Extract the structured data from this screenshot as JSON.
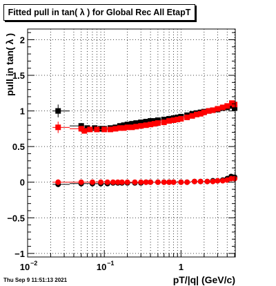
{
  "timestamp": "Thu Sep  9 11:51:13 2021",
  "chart_data": {
    "type": "scatter",
    "title": "Fitted pull in tan( λ ) for Global Rec All EtapT",
    "xlabel": "pT/|q| (GeV/c)",
    "ylabel": "pull in tan( λ )",
    "xscale": "log",
    "xlim": [
      0.01,
      5.1
    ],
    "ylim": [
      -1.05,
      2.15
    ],
    "grid": true,
    "x_ticks": [
      {
        "value": 0.01,
        "label": "10",
        "exp": "−2"
      },
      {
        "value": 0.1,
        "label": "10",
        "exp": "−1"
      },
      {
        "value": 1,
        "label": "1",
        "exp": ""
      }
    ],
    "y_ticks": [
      {
        "value": -1,
        "label": "−1"
      },
      {
        "value": -0.5,
        "label": "−0.5"
      },
      {
        "value": 0,
        "label": "0"
      },
      {
        "value": 0.5,
        "label": "0.5"
      },
      {
        "value": 1,
        "label": "1"
      },
      {
        "value": 1.5,
        "label": "1.5"
      },
      {
        "value": 2,
        "label": "2"
      }
    ],
    "series": [
      {
        "color": "#000000",
        "marker": "square",
        "points": [
          [
            0.025,
            1.0
          ],
          [
            0.05,
            0.79
          ],
          [
            0.06,
            0.76
          ],
          [
            0.075,
            0.76
          ],
          [
            0.09,
            0.75
          ],
          [
            0.1,
            0.75
          ],
          [
            0.12,
            0.76
          ],
          [
            0.14,
            0.77
          ],
          [
            0.16,
            0.79
          ],
          [
            0.18,
            0.8
          ],
          [
            0.2,
            0.81
          ],
          [
            0.23,
            0.82
          ],
          [
            0.26,
            0.83
          ],
          [
            0.3,
            0.84
          ],
          [
            0.35,
            0.85
          ],
          [
            0.4,
            0.86
          ],
          [
            0.45,
            0.86
          ],
          [
            0.5,
            0.87
          ],
          [
            0.6,
            0.88
          ],
          [
            0.7,
            0.89
          ],
          [
            0.8,
            0.9
          ],
          [
            0.9,
            0.91
          ],
          [
            1.0,
            0.92
          ],
          [
            1.2,
            0.94
          ],
          [
            1.4,
            0.96
          ],
          [
            1.6,
            0.97
          ],
          [
            1.8,
            0.98
          ],
          [
            2.0,
            0.99
          ],
          [
            2.3,
            1.0
          ],
          [
            2.6,
            1.01
          ],
          [
            3.0,
            1.02
          ],
          [
            3.5,
            1.04
          ],
          [
            4.0,
            1.05
          ],
          [
            4.6,
            1.07
          ],
          [
            5.0,
            1.04
          ]
        ],
        "errors": [
          0.09,
          0.03,
          0.02,
          0.02,
          0.02,
          0.02,
          0.02,
          0.02,
          0.02,
          0.02,
          0.02,
          0.02,
          0.02,
          0.02,
          0.02,
          0.02,
          0.02,
          0.02,
          0.02,
          0.02,
          0.02,
          0.02,
          0.02,
          0.02,
          0.02,
          0.02,
          0.02,
          0.02,
          0.02,
          0.02,
          0.02,
          0.02,
          0.02,
          0.02,
          0.02
        ]
      },
      {
        "color": "#ff0000",
        "marker": "square",
        "points": [
          [
            0.025,
            0.77
          ],
          [
            0.05,
            0.75
          ],
          [
            0.055,
            0.72
          ],
          [
            0.065,
            0.74
          ],
          [
            0.08,
            0.74
          ],
          [
            0.1,
            0.74
          ],
          [
            0.12,
            0.74
          ],
          [
            0.14,
            0.75
          ],
          [
            0.16,
            0.76
          ],
          [
            0.18,
            0.76
          ],
          [
            0.2,
            0.77
          ],
          [
            0.23,
            0.77
          ],
          [
            0.26,
            0.78
          ],
          [
            0.3,
            0.79
          ],
          [
            0.35,
            0.8
          ],
          [
            0.4,
            0.81
          ],
          [
            0.45,
            0.82
          ],
          [
            0.5,
            0.83
          ],
          [
            0.6,
            0.84
          ],
          [
            0.7,
            0.86
          ],
          [
            0.8,
            0.87
          ],
          [
            0.9,
            0.88
          ],
          [
            1.0,
            0.89
          ],
          [
            1.2,
            0.91
          ],
          [
            1.4,
            0.93
          ],
          [
            1.6,
            0.95
          ],
          [
            1.8,
            0.96
          ],
          [
            2.0,
            0.98
          ],
          [
            2.3,
            1.0
          ],
          [
            2.6,
            1.01
          ],
          [
            3.0,
            1.03
          ],
          [
            3.5,
            1.05
          ],
          [
            4.0,
            1.07
          ],
          [
            4.6,
            1.11
          ],
          [
            5.0,
            1.09
          ]
        ],
        "errors": [
          0.08,
          0.03,
          0.02,
          0.02,
          0.02,
          0.02,
          0.02,
          0.02,
          0.02,
          0.02,
          0.02,
          0.02,
          0.02,
          0.02,
          0.02,
          0.02,
          0.02,
          0.02,
          0.02,
          0.02,
          0.02,
          0.02,
          0.02,
          0.02,
          0.02,
          0.02,
          0.02,
          0.02,
          0.02,
          0.02,
          0.02,
          0.02,
          0.02,
          0.02,
          0.02
        ]
      },
      {
        "color": "#000000",
        "marker": "circle",
        "points": [
          [
            0.025,
            -0.03
          ],
          [
            0.05,
            -0.02
          ],
          [
            0.07,
            -0.02
          ],
          [
            0.09,
            -0.02
          ],
          [
            0.11,
            -0.02
          ],
          [
            0.13,
            -0.01
          ],
          [
            0.15,
            -0.01
          ],
          [
            0.17,
            -0.01
          ],
          [
            0.2,
            -0.01
          ],
          [
            0.25,
            -0.01
          ],
          [
            0.3,
            -0.01
          ],
          [
            0.35,
            0.0
          ],
          [
            0.4,
            0.0
          ],
          [
            0.5,
            0.0
          ],
          [
            0.6,
            0.0
          ],
          [
            0.7,
            0.0
          ],
          [
            0.8,
            0.0
          ],
          [
            1.0,
            0.0
          ],
          [
            1.2,
            0.0
          ],
          [
            1.5,
            0.01
          ],
          [
            1.8,
            0.01
          ],
          [
            2.2,
            0.01
          ],
          [
            2.6,
            0.02
          ],
          [
            3.0,
            0.02
          ],
          [
            3.5,
            0.03
          ],
          [
            4.0,
            0.05
          ],
          [
            4.5,
            0.08
          ],
          [
            5.0,
            0.07
          ]
        ],
        "errors": [
          0.04,
          0.02,
          0.02,
          0.02,
          0.02,
          0.02,
          0.02,
          0.02,
          0.02,
          0.02,
          0.02,
          0.02,
          0.02,
          0.02,
          0.02,
          0.02,
          0.02,
          0.02,
          0.02,
          0.02,
          0.02,
          0.02,
          0.02,
          0.02,
          0.02,
          0.02,
          0.03,
          0.03
        ]
      },
      {
        "color": "#ff0000",
        "marker": "circle",
        "points": [
          [
            0.025,
            0.0
          ],
          [
            0.05,
            0.0
          ],
          [
            0.07,
            0.0
          ],
          [
            0.09,
            0.0
          ],
          [
            0.11,
            0.0
          ],
          [
            0.13,
            0.0
          ],
          [
            0.15,
            0.0
          ],
          [
            0.17,
            0.0
          ],
          [
            0.2,
            0.0
          ],
          [
            0.25,
            0.0
          ],
          [
            0.3,
            0.0
          ],
          [
            0.35,
            0.0
          ],
          [
            0.4,
            0.0
          ],
          [
            0.5,
            0.0
          ],
          [
            0.6,
            0.0
          ],
          [
            0.7,
            0.0
          ],
          [
            0.8,
            0.0
          ],
          [
            1.0,
            0.0
          ],
          [
            1.2,
            0.0
          ],
          [
            1.5,
            0.01
          ],
          [
            1.8,
            0.01
          ],
          [
            2.2,
            0.01
          ],
          [
            2.6,
            0.01
          ],
          [
            3.0,
            0.02
          ],
          [
            3.5,
            0.02
          ],
          [
            4.0,
            0.03
          ],
          [
            4.5,
            0.05
          ],
          [
            5.0,
            0.05
          ]
        ],
        "errors": [
          0.04,
          0.02,
          0.02,
          0.02,
          0.02,
          0.02,
          0.02,
          0.02,
          0.02,
          0.02,
          0.02,
          0.02,
          0.02,
          0.02,
          0.02,
          0.02,
          0.02,
          0.02,
          0.02,
          0.02,
          0.02,
          0.02,
          0.02,
          0.02,
          0.02,
          0.02,
          0.03,
          0.03
        ]
      }
    ]
  }
}
